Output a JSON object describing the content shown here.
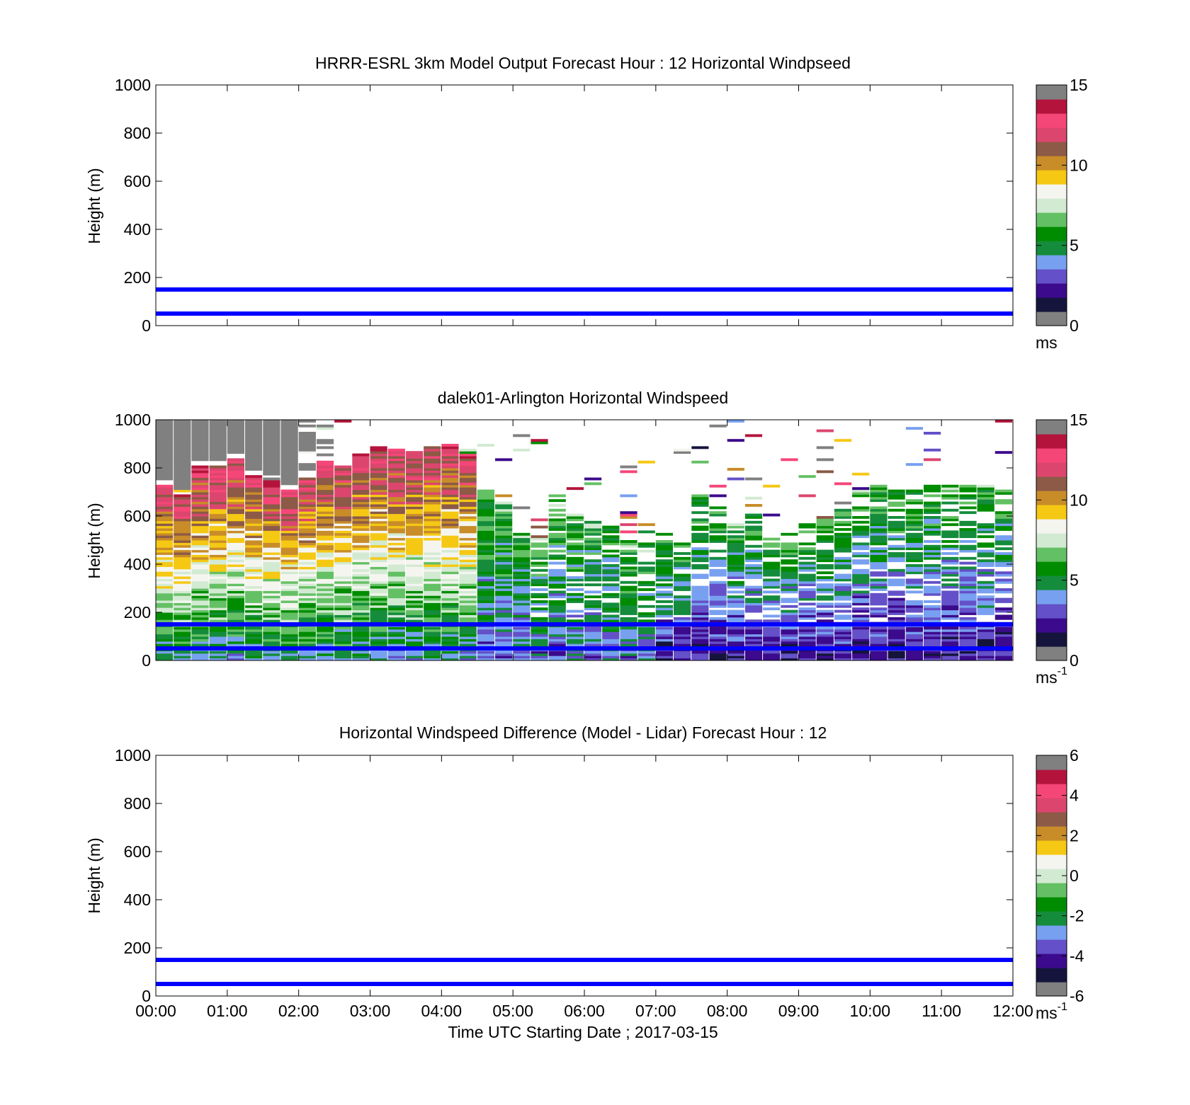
{
  "chart_data": [
    {
      "type": "heatmap",
      "title": "HRRR-ESRL 3km Model Output   Forecast Hour : 12 Horizontal Windpseed",
      "ylabel": "Height (m)",
      "ylim": [
        0,
        1000
      ],
      "yticks": [
        "0",
        "200",
        "400",
        "600",
        "800",
        "1000"
      ],
      "xlim_hours": [
        0,
        12
      ],
      "xticks": [
        "00:00",
        "01:00",
        "02:00",
        "03:00",
        "04:00",
        "05:00",
        "06:00",
        "07:00",
        "08:00",
        "09:00",
        "10:00",
        "11:00",
        "12:00"
      ],
      "show_xticklabels": false,
      "reference_lines_m": [
        50,
        150
      ],
      "reference_line_color": "#0000ff",
      "colorbar": {
        "min": 0,
        "max": 15,
        "ticks": [
          "0",
          "5",
          "10",
          "15"
        ],
        "unit": "ms",
        "unit_sup": ""
      },
      "field": "empty"
    },
    {
      "type": "heatmap",
      "title": "dalek01-Arlington  Horizontal Windspeed",
      "ylabel": "Height (m)",
      "ylim": [
        0,
        1000
      ],
      "yticks": [
        "0",
        "200",
        "400",
        "600",
        "800",
        "1000"
      ],
      "xlim_hours": [
        0,
        12
      ],
      "xticks": [
        "00:00",
        "01:00",
        "02:00",
        "03:00",
        "04:00",
        "05:00",
        "06:00",
        "07:00",
        "08:00",
        "09:00",
        "10:00",
        "11:00",
        "12:00"
      ],
      "show_xticklabels": false,
      "reference_lines_m": [
        50,
        150
      ],
      "reference_line_color": "#0000ff",
      "colorbar": {
        "min": 0,
        "max": 15,
        "ticks": [
          "0",
          "5",
          "10",
          "15"
        ],
        "unit": "ms",
        "unit_sup": "-1"
      },
      "field": "lidar",
      "profile_time_step_hours": 0.25,
      "lidar_top_of_data_m": [
        720,
        680,
        800,
        800,
        830,
        760,
        740,
        700,
        750,
        820,
        800,
        850,
        880,
        870,
        860,
        880,
        890,
        850,
        700,
        650,
        520,
        500,
        680,
        600,
        580,
        560,
        500,
        480,
        520,
        480,
        700,
        640,
        560,
        600,
        500,
        520,
        560,
        580,
        620,
        700,
        720,
        700,
        700,
        730,
        720,
        720,
        740,
        710
      ]
    },
    {
      "type": "heatmap",
      "title": "Horizontal Windspeed Difference (Model - Lidar) Forecast Hour : 12",
      "ylabel": "Height (m)",
      "xlabel": "Time UTC  Starting Date ; 2017-03-15",
      "ylim": [
        0,
        1000
      ],
      "yticks": [
        "0",
        "200",
        "400",
        "600",
        "800",
        "1000"
      ],
      "xlim_hours": [
        0,
        12
      ],
      "xticks": [
        "00:00",
        "01:00",
        "02:00",
        "03:00",
        "04:00",
        "05:00",
        "06:00",
        "07:00",
        "08:00",
        "09:00",
        "10:00",
        "11:00",
        "12:00"
      ],
      "show_xticklabels": true,
      "reference_lines_m": [
        50,
        150
      ],
      "reference_line_color": "#0000ff",
      "colorbar": {
        "min": -6,
        "max": 6,
        "ticks": [
          "-6",
          "-4",
          "-2",
          "0",
          "2",
          "4",
          "6"
        ],
        "unit": "ms",
        "unit_sup": "-1"
      },
      "field": "empty"
    }
  ],
  "colormap": [
    "#808080",
    "#14143c",
    "#3c0a8c",
    "#6450c8",
    "#78a0f0",
    "#148c3c",
    "#008c00",
    "#64c064",
    "#d2ead2",
    "#f5f5f0",
    "#f5c814",
    "#c88c28",
    "#8c5a46",
    "#dc466e",
    "#f54678",
    "#b4143c",
    "#808080"
  ]
}
